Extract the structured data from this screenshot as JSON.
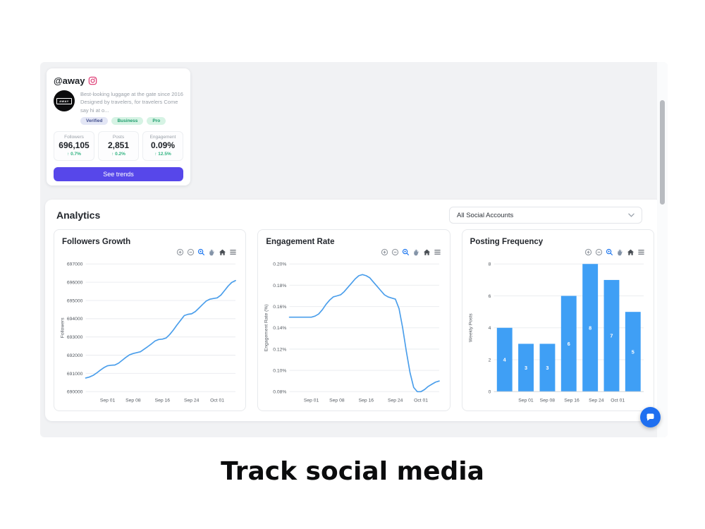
{
  "caption": "Track social media",
  "profile_card": {
    "handle": "@away",
    "avatar_text": "AWAY",
    "bio": "Best-looking luggage at the gate since 2016 Designed by travelers, for travelers Come say hi at o...",
    "badges": [
      {
        "label": "Verified",
        "bg": "#e3e6f5",
        "color": "#44518f"
      },
      {
        "label": "Business",
        "bg": "#d6f3e4",
        "color": "#1f9e6e"
      },
      {
        "label": "Pro",
        "bg": "#d6f3e4",
        "color": "#1f9e6e"
      }
    ],
    "stats": [
      {
        "label": "Followers",
        "value": "696,105",
        "change": "↑ 0.7%"
      },
      {
        "label": "Posts",
        "value": "2,851",
        "change": "↑ 0.2%"
      },
      {
        "label": "Engagement",
        "value": "0.09%",
        "change": "↑ 12.5%"
      }
    ],
    "cta_label": "See trends"
  },
  "analytics": {
    "title": "Analytics",
    "account_filter": "All Social Accounts"
  },
  "modebar": {
    "icons": [
      {
        "name": "zoom-in-icon",
        "glyph": "zoom-in",
        "color": "#8d939b"
      },
      {
        "name": "zoom-out-icon",
        "glyph": "zoom-out",
        "color": "#8d939b"
      },
      {
        "name": "zoom-select-icon",
        "glyph": "magnifier",
        "color": "#1f78f0"
      },
      {
        "name": "pan-icon",
        "glyph": "hand",
        "color": "#8494a8"
      },
      {
        "name": "reset-axes-home-icon",
        "glyph": "home",
        "color": "#4a4f55"
      },
      {
        "name": "menu-icon",
        "glyph": "menu",
        "color": "#6c727a"
      }
    ]
  },
  "chart_data": [
    {
      "type": "line",
      "title": "Followers Growth",
      "ylabel": "Followers",
      "ylim": [
        690000,
        697000
      ],
      "yticks": [
        690000,
        691000,
        692000,
        693000,
        694000,
        695000,
        696000,
        697000
      ],
      "ytick_labels": [
        "690000",
        "691000",
        "692000",
        "693000",
        "694000",
        "695000",
        "696000",
        "697000"
      ],
      "xticks": [
        {
          "label": "Sep 01",
          "f": 0.146
        },
        {
          "label": "Sep 08",
          "f": 0.317
        },
        {
          "label": "Sep 16",
          "f": 0.512
        },
        {
          "label": "Sep 24",
          "f": 0.707
        },
        {
          "label": "Oct 01",
          "f": 0.878
        }
      ],
      "values": [
        690750,
        690800,
        690890,
        691020,
        691180,
        691320,
        691420,
        691450,
        691460,
        691560,
        691720,
        691880,
        692020,
        692090,
        692140,
        692190,
        692330,
        692470,
        692620,
        692780,
        692860,
        692880,
        692940,
        693130,
        693380,
        693660,
        693920,
        694170,
        694240,
        694270,
        694390,
        694580,
        694780,
        694970,
        695070,
        695110,
        695140,
        695290,
        695540,
        695790,
        695990,
        696090
      ],
      "color": "#4a9eeb",
      "grid": true,
      "legend": "none"
    },
    {
      "type": "line",
      "title": "Engagement Rate",
      "ylabel": "Engagement Rate (%)",
      "ylim": [
        0.08,
        0.2
      ],
      "yticks": [
        0.08,
        0.1,
        0.12,
        0.14,
        0.16,
        0.18,
        0.2
      ],
      "ytick_labels": [
        "0.08%",
        "0.10%",
        "0.12%",
        "0.14%",
        "0.16%",
        "0.18%",
        "0.20%"
      ],
      "xticks": [
        {
          "label": "Sep 01",
          "f": 0.146
        },
        {
          "label": "Sep 08",
          "f": 0.317
        },
        {
          "label": "Sep 16",
          "f": 0.512
        },
        {
          "label": "Sep 24",
          "f": 0.707
        },
        {
          "label": "Oct 01",
          "f": 0.878
        }
      ],
      "values": [
        0.15,
        0.15,
        0.15,
        0.15,
        0.15,
        0.15,
        0.15,
        0.151,
        0.153,
        0.157,
        0.162,
        0.166,
        0.169,
        0.17,
        0.171,
        0.174,
        0.178,
        0.182,
        0.186,
        0.189,
        0.19,
        0.189,
        0.187,
        0.183,
        0.179,
        0.175,
        0.171,
        0.169,
        0.168,
        0.167,
        0.158,
        0.14,
        0.118,
        0.098,
        0.084,
        0.08,
        0.08,
        0.082,
        0.085,
        0.087,
        0.089,
        0.09
      ],
      "color": "#4a9eeb",
      "grid": true,
      "legend": "none"
    },
    {
      "type": "bar",
      "title": "Posting Frequency",
      "ylabel": "Weekly Posts",
      "ylim": [
        0,
        8
      ],
      "yticks": [
        0,
        2,
        4,
        6,
        8
      ],
      "ytick_labels": [
        "0",
        "2",
        "4",
        "6",
        "8"
      ],
      "xticks": [
        {
          "label": "Sep 01",
          "f": 0.214
        },
        {
          "label": "Sep 08",
          "f": 0.357
        },
        {
          "label": "Sep 16",
          "f": 0.52
        },
        {
          "label": "Sep 24",
          "f": 0.684
        },
        {
          "label": "Oct 01",
          "f": 0.827
        }
      ],
      "values": [
        4,
        3,
        3,
        6,
        8,
        7,
        5
      ],
      "bar_labels": [
        "4",
        "3",
        "3",
        "6",
        "8",
        "7",
        "5"
      ],
      "color": "#3f9ff5",
      "grid": true,
      "legend": "none"
    }
  ],
  "colors": {
    "accent_purple": "#5747ea",
    "positive_green": "#2fb380",
    "chart_blue": "#4a9eeb",
    "bar_blue": "#3f9ff5",
    "chat_blue": "#1f6ff0",
    "instagram_pink": "#e0457b",
    "viewport_bg": "#f1f2f4"
  }
}
